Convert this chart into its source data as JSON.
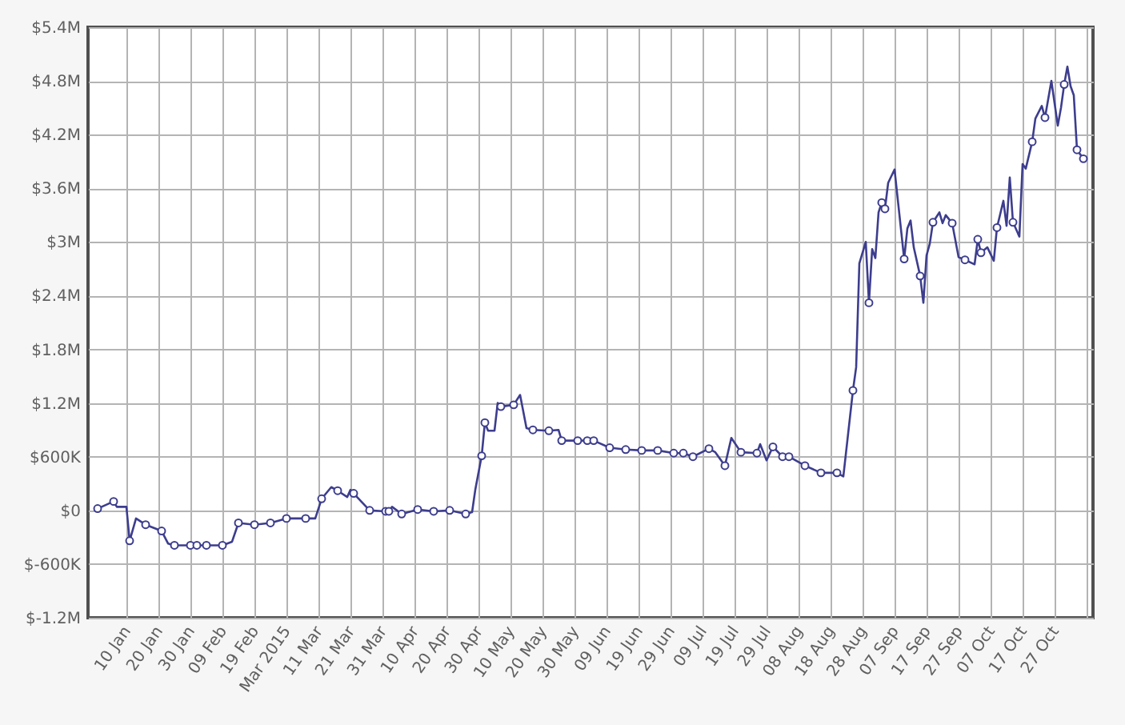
{
  "chart_data": {
    "type": "line",
    "xlim": [
      "2014-12-29",
      "2015-11-08"
    ],
    "xticks": [
      {
        "value": "2015-01-10",
        "label": "10 Jan"
      },
      {
        "value": "2015-01-20",
        "label": "20 Jan"
      },
      {
        "value": "2015-01-30",
        "label": "30 Jan"
      },
      {
        "value": "2015-02-09",
        "label": "09 Feb"
      },
      {
        "value": "2015-02-19",
        "label": "19 Feb"
      },
      {
        "value": "2015-03-01",
        "label": "Mar 2015"
      },
      {
        "value": "2015-03-11",
        "label": "11 Mar"
      },
      {
        "value": "2015-03-21",
        "label": "21 Mar"
      },
      {
        "value": "2015-03-31",
        "label": "31 Mar"
      },
      {
        "value": "2015-04-10",
        "label": "10 Apr"
      },
      {
        "value": "2015-04-20",
        "label": "20 Apr"
      },
      {
        "value": "2015-04-30",
        "label": "30 Apr"
      },
      {
        "value": "2015-05-10",
        "label": "10 May"
      },
      {
        "value": "2015-05-20",
        "label": "20 May"
      },
      {
        "value": "2015-05-30",
        "label": "30 May"
      },
      {
        "value": "2015-06-09",
        "label": "09 Jun"
      },
      {
        "value": "2015-06-19",
        "label": "19 Jun"
      },
      {
        "value": "2015-06-29",
        "label": "29 Jun"
      },
      {
        "value": "2015-07-09",
        "label": "09 Jul"
      },
      {
        "value": "2015-07-19",
        "label": "19 Jul"
      },
      {
        "value": "2015-07-29",
        "label": "29 Jul"
      },
      {
        "value": "2015-08-08",
        "label": "08 Aug"
      },
      {
        "value": "2015-08-18",
        "label": "18 Aug"
      },
      {
        "value": "2015-08-28",
        "label": "28 Aug"
      },
      {
        "value": "2015-09-07",
        "label": "07 Sep"
      },
      {
        "value": "2015-09-17",
        "label": "17 Sep"
      },
      {
        "value": "2015-09-27",
        "label": "27 Sep"
      },
      {
        "value": "2015-10-07",
        "label": "07 Oct"
      },
      {
        "value": "2015-10-17",
        "label": "17 Oct"
      },
      {
        "value": "2015-10-27",
        "label": "27 Oct"
      },
      {
        "value": "2015-11-06",
        "label": null
      }
    ],
    "ylim": [
      -1200000,
      5400000
    ],
    "yticks": [
      {
        "value": -1200000,
        "label": "$-1.2M"
      },
      {
        "value": -600000,
        "label": "$-600K"
      },
      {
        "value": 0,
        "label": "$0"
      },
      {
        "value": 600000,
        "label": "$600K"
      },
      {
        "value": 1200000,
        "label": "$1.2M"
      },
      {
        "value": 1800000,
        "label": "$1.8M"
      },
      {
        "value": 2400000,
        "label": "$2.4M"
      },
      {
        "value": 3000000,
        "label": "$3M"
      },
      {
        "value": 3600000,
        "label": "$3.6M"
      },
      {
        "value": 4200000,
        "label": "$4.2M"
      },
      {
        "value": 4800000,
        "label": "$4.8M"
      },
      {
        "value": 5400000,
        "label": "$5.4M"
      }
    ],
    "grid": true,
    "series": [
      {
        "type": "line",
        "color": "#3d3d8e",
        "marker": "none",
        "x": [
          "2015-01-01",
          "2015-01-06",
          "2015-01-07",
          "2015-01-10",
          "2015-01-11",
          "2015-01-13",
          "2015-01-16",
          "2015-01-21",
          "2015-01-23",
          "2015-01-25",
          "2015-01-30",
          "2015-02-01",
          "2015-02-04",
          "2015-02-09",
          "2015-02-12",
          "2015-02-14",
          "2015-02-19",
          "2015-02-24",
          "2015-03-01",
          "2015-03-07",
          "2015-03-10",
          "2015-03-12",
          "2015-03-15",
          "2015-03-17",
          "2015-03-20",
          "2015-03-21",
          "2015-03-22",
          "2015-03-27",
          "2015-04-01",
          "2015-04-02",
          "2015-04-03",
          "2015-04-06",
          "2015-04-11",
          "2015-04-16",
          "2015-04-21",
          "2015-04-26",
          "2015-04-28",
          "2015-04-29",
          "2015-05-01",
          "2015-05-02",
          "2015-05-03",
          "2015-05-05",
          "2015-05-06",
          "2015-05-07",
          "2015-05-11",
          "2015-05-13",
          "2015-05-15",
          "2015-05-17",
          "2015-05-22",
          "2015-05-25",
          "2015-05-26",
          "2015-05-31",
          "2015-06-03",
          "2015-06-05",
          "2015-06-10",
          "2015-06-15",
          "2015-06-20",
          "2015-06-25",
          "2015-06-30",
          "2015-07-03",
          "2015-07-06",
          "2015-07-11",
          "2015-07-13",
          "2015-07-16",
          "2015-07-18",
          "2015-07-21",
          "2015-07-26",
          "2015-07-27",
          "2015-07-29",
          "2015-07-31",
          "2015-08-03",
          "2015-08-05",
          "2015-08-10",
          "2015-08-15",
          "2015-08-20",
          "2015-08-22",
          "2015-08-25",
          "2015-08-26",
          "2015-08-27",
          "2015-08-29",
          "2015-08-30",
          "2015-08-31",
          "2015-09-01",
          "2015-09-02",
          "2015-09-03",
          "2015-09-04",
          "2015-09-05",
          "2015-09-07",
          "2015-09-10",
          "2015-09-11",
          "2015-09-12",
          "2015-09-13",
          "2015-09-15",
          "2015-09-16",
          "2015-09-17",
          "2015-09-18",
          "2015-09-19",
          "2015-09-21",
          "2015-09-22",
          "2015-09-23",
          "2015-09-25",
          "2015-09-27",
          "2015-09-29",
          "2015-10-02",
          "2015-10-03",
          "2015-10-04",
          "2015-10-06",
          "2015-10-08",
          "2015-10-09",
          "2015-10-11",
          "2015-10-12",
          "2015-10-13",
          "2015-10-14",
          "2015-10-16",
          "2015-10-17",
          "2015-10-18",
          "2015-10-20",
          "2015-10-21",
          "2015-10-23",
          "2015-10-24",
          "2015-10-26",
          "2015-10-28",
          "2015-10-29",
          "2015-10-30",
          "2015-10-31",
          "2015-11-01",
          "2015-11-02",
          "2015-11-03",
          "2015-11-05"
        ],
        "values": [
          20000,
          100000,
          40000,
          40000,
          -340000,
          -90000,
          -160000,
          -230000,
          -370000,
          -390000,
          -390000,
          -390000,
          -390000,
          -390000,
          -350000,
          -140000,
          -160000,
          -140000,
          -90000,
          -90000,
          -90000,
          130000,
          260000,
          220000,
          150000,
          230000,
          190000,
          0,
          -10000,
          -10000,
          40000,
          -40000,
          10000,
          -10000,
          0,
          -40000,
          -20000,
          230000,
          610000,
          980000,
          890000,
          890000,
          1200000,
          1160000,
          1180000,
          1290000,
          920000,
          900000,
          890000,
          900000,
          780000,
          780000,
          780000,
          780000,
          700000,
          680000,
          670000,
          670000,
          640000,
          640000,
          600000,
          690000,
          650000,
          500000,
          810000,
          650000,
          640000,
          740000,
          560000,
          710000,
          600000,
          600000,
          500000,
          420000,
          420000,
          380000,
          1340000,
          1600000,
          2760000,
          3000000,
          2320000,
          2920000,
          2820000,
          3330000,
          3440000,
          3370000,
          3660000,
          3810000,
          2810000,
          3150000,
          3240000,
          2940000,
          2620000,
          2320000,
          2850000,
          2980000,
          3220000,
          3330000,
          3210000,
          3300000,
          3210000,
          2830000,
          2800000,
          2750000,
          3030000,
          2880000,
          2940000,
          2790000,
          3160000,
          3460000,
          3180000,
          3720000,
          3220000,
          3060000,
          3870000,
          3820000,
          4120000,
          4380000,
          4520000,
          4390000,
          4800000,
          4300000,
          4500000,
          4760000,
          4960000,
          4740000,
          4640000,
          4030000,
          3930000
        ]
      },
      {
        "type": "scatter",
        "color": "#3d3d8e",
        "marker": "circle",
        "x": [
          "2015-01-01",
          "2015-01-06",
          "2015-01-11",
          "2015-01-16",
          "2015-01-21",
          "2015-01-25",
          "2015-01-30",
          "2015-02-01",
          "2015-02-04",
          "2015-02-09",
          "2015-02-14",
          "2015-02-19",
          "2015-02-24",
          "2015-03-01",
          "2015-03-07",
          "2015-03-12",
          "2015-03-17",
          "2015-03-22",
          "2015-03-27",
          "2015-04-01",
          "2015-04-02",
          "2015-04-06",
          "2015-04-11",
          "2015-04-16",
          "2015-04-21",
          "2015-04-26",
          "2015-05-01",
          "2015-05-02",
          "2015-05-07",
          "2015-05-11",
          "2015-05-17",
          "2015-05-22",
          "2015-05-26",
          "2015-05-31",
          "2015-06-03",
          "2015-06-05",
          "2015-06-10",
          "2015-06-15",
          "2015-06-20",
          "2015-06-25",
          "2015-06-30",
          "2015-07-03",
          "2015-07-06",
          "2015-07-11",
          "2015-07-16",
          "2015-07-21",
          "2015-07-26",
          "2015-07-31",
          "2015-08-03",
          "2015-08-05",
          "2015-08-10",
          "2015-08-15",
          "2015-08-20",
          "2015-08-25",
          "2015-08-30",
          "2015-09-03",
          "2015-09-04",
          "2015-09-10",
          "2015-09-15",
          "2015-09-19",
          "2015-09-25",
          "2015-09-29",
          "2015-10-03",
          "2015-10-04",
          "2015-10-09",
          "2015-10-14",
          "2015-10-20",
          "2015-10-24",
          "2015-10-30",
          "2015-11-03",
          "2015-11-05"
        ],
        "values": [
          20000,
          100000,
          -340000,
          -160000,
          -230000,
          -390000,
          -390000,
          -390000,
          -390000,
          -390000,
          -140000,
          -160000,
          -140000,
          -90000,
          -90000,
          130000,
          220000,
          190000,
          0,
          -10000,
          -10000,
          -40000,
          10000,
          -10000,
          0,
          -40000,
          610000,
          980000,
          1160000,
          1180000,
          900000,
          890000,
          780000,
          780000,
          780000,
          780000,
          700000,
          680000,
          670000,
          670000,
          640000,
          640000,
          600000,
          690000,
          500000,
          650000,
          640000,
          710000,
          600000,
          600000,
          500000,
          420000,
          420000,
          1340000,
          2320000,
          3440000,
          3370000,
          2810000,
          2620000,
          3220000,
          3210000,
          2800000,
          3030000,
          2880000,
          3160000,
          3220000,
          4120000,
          4390000,
          4760000,
          4030000,
          3930000
        ]
      }
    ]
  }
}
